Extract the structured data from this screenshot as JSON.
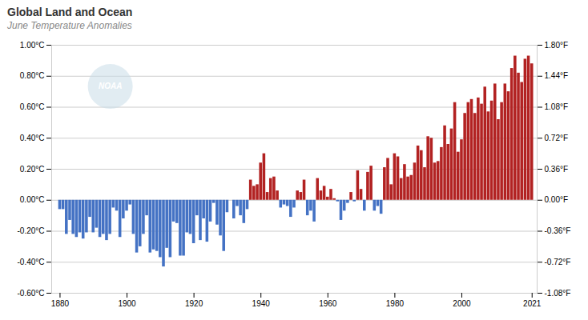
{
  "chart_data": {
    "type": "bar",
    "title": "Global Land and Ocean",
    "subtitle": "June Temperature Anomalies",
    "x": [
      1880,
      1881,
      1882,
      1883,
      1884,
      1885,
      1886,
      1887,
      1888,
      1889,
      1890,
      1891,
      1892,
      1893,
      1894,
      1895,
      1896,
      1897,
      1898,
      1899,
      1900,
      1901,
      1902,
      1903,
      1904,
      1905,
      1906,
      1907,
      1908,
      1909,
      1910,
      1911,
      1912,
      1913,
      1914,
      1915,
      1916,
      1917,
      1918,
      1919,
      1920,
      1921,
      1922,
      1923,
      1924,
      1925,
      1926,
      1927,
      1928,
      1929,
      1930,
      1931,
      1932,
      1933,
      1934,
      1935,
      1936,
      1937,
      1938,
      1939,
      1940,
      1941,
      1942,
      1943,
      1944,
      1945,
      1946,
      1947,
      1948,
      1949,
      1950,
      1951,
      1952,
      1953,
      1954,
      1955,
      1956,
      1957,
      1958,
      1959,
      1960,
      1961,
      1962,
      1963,
      1964,
      1965,
      1966,
      1967,
      1968,
      1969,
      1970,
      1971,
      1972,
      1973,
      1974,
      1975,
      1976,
      1977,
      1978,
      1979,
      1980,
      1981,
      1982,
      1983,
      1984,
      1985,
      1986,
      1987,
      1988,
      1989,
      1990,
      1991,
      1992,
      1993,
      1994,
      1995,
      1996,
      1997,
      1998,
      1999,
      2000,
      2001,
      2002,
      2003,
      2004,
      2005,
      2006,
      2007,
      2008,
      2009,
      2010,
      2011,
      2012,
      2013,
      2014,
      2015,
      2016,
      2017,
      2018,
      2019,
      2020,
      2021
    ],
    "values": [
      -0.06,
      -0.06,
      -0.22,
      -0.13,
      -0.22,
      -0.24,
      -0.21,
      -0.25,
      -0.21,
      -0.11,
      -0.21,
      -0.18,
      -0.24,
      -0.22,
      -0.26,
      -0.22,
      -0.05,
      -0.07,
      -0.24,
      -0.12,
      -0.07,
      -0.03,
      -0.22,
      -0.34,
      -0.3,
      -0.22,
      -0.1,
      -0.34,
      -0.32,
      -0.33,
      -0.37,
      -0.43,
      -0.31,
      -0.37,
      -0.14,
      -0.15,
      -0.36,
      -0.36,
      -0.21,
      -0.22,
      -0.28,
      -0.1,
      -0.26,
      -0.12,
      -0.27,
      -0.14,
      -0.02,
      -0.16,
      -0.23,
      -0.33,
      -0.08,
      -0.0,
      -0.12,
      -0.04,
      -0.1,
      -0.15,
      -0.06,
      0.13,
      0.09,
      0.1,
      0.24,
      0.3,
      0.05,
      0.14,
      0.15,
      0.06,
      -0.05,
      -0.03,
      -0.04,
      -0.11,
      -0.05,
      0.06,
      0.05,
      0.13,
      -0.1,
      -0.07,
      -0.14,
      0.14,
      0.06,
      0.09,
      0.02,
      0.07,
      0.01,
      -0.01,
      -0.13,
      -0.07,
      -0.02,
      0.05,
      -0.01,
      0.19,
      0.07,
      -0.07,
      0.18,
      0.22,
      -0.07,
      -0.04,
      -0.09,
      0.21,
      0.27,
      0.1,
      0.3,
      0.28,
      0.14,
      0.23,
      0.15,
      0.16,
      0.24,
      0.35,
      0.32,
      0.21,
      0.41,
      0.4,
      0.24,
      0.25,
      0.34,
      0.48,
      0.36,
      0.46,
      0.63,
      0.31,
      0.39,
      0.56,
      0.63,
      0.65,
      0.56,
      0.66,
      0.62,
      0.73,
      0.57,
      0.64,
      0.75,
      0.52,
      0.63,
      0.75,
      0.7,
      0.85,
      0.93,
      0.82,
      0.76,
      0.91,
      0.93,
      0.88
    ],
    "colors": [
      "#4472c4",
      "#4472c4",
      "#4472c4",
      "#4472c4",
      "#4472c4",
      "#4472c4",
      "#4472c4",
      "#4472c4",
      "#4472c4",
      "#4472c4",
      "#4472c4",
      "#4472c4",
      "#4472c4",
      "#4472c4",
      "#4472c4",
      "#4472c4",
      "#4472c4",
      "#4472c4",
      "#4472c4",
      "#4472c4",
      "#4472c4",
      "#4472c4",
      "#4472c4",
      "#4472c4",
      "#4472c4",
      "#4472c4",
      "#4472c4",
      "#4472c4",
      "#4472c4",
      "#4472c4",
      "#4472c4",
      "#4472c4",
      "#4472c4",
      "#4472c4",
      "#4472c4",
      "#4472c4",
      "#4472c4",
      "#4472c4",
      "#4472c4",
      "#4472c4",
      "#4472c4",
      "#4472c4",
      "#4472c4",
      "#4472c4",
      "#4472c4",
      "#4472c4",
      "#4472c4",
      "#4472c4",
      "#4472c4",
      "#4472c4",
      "#4472c4",
      "#b22222",
      "#4472c4",
      "#4472c4",
      "#4472c4",
      "#4472c4",
      "#4472c4",
      "#b22222",
      "#b22222",
      "#b22222",
      "#b22222",
      "#b22222",
      "#b22222",
      "#b22222",
      "#b22222",
      "#b22222",
      "#4472c4",
      "#4472c4",
      "#4472c4",
      "#4472c4",
      "#4472c4",
      "#b22222",
      "#b22222",
      "#b22222",
      "#4472c4",
      "#4472c4",
      "#4472c4",
      "#b22222",
      "#b22222",
      "#b22222",
      "#b22222",
      "#b22222",
      "#b22222",
      "#4472c4",
      "#4472c4",
      "#4472c4",
      "#4472c4",
      "#b22222",
      "#4472c4",
      "#b22222",
      "#b22222",
      "#4472c4",
      "#b22222",
      "#b22222",
      "#4472c4",
      "#4472c4",
      "#4472c4",
      "#b22222",
      "#b22222",
      "#b22222",
      "#b22222",
      "#b22222",
      "#b22222",
      "#b22222",
      "#b22222",
      "#b22222",
      "#b22222",
      "#b22222",
      "#b22222",
      "#b22222",
      "#b22222",
      "#b22222",
      "#b22222",
      "#b22222",
      "#b22222",
      "#b22222",
      "#b22222",
      "#b22222",
      "#b22222",
      "#b22222",
      "#b22222",
      "#b22222",
      "#b22222",
      "#b22222",
      "#b22222",
      "#b22222",
      "#b22222",
      "#b22222",
      "#b22222",
      "#b22222",
      "#b22222",
      "#b22222",
      "#b22222",
      "#b22222",
      "#b22222",
      "#b22222",
      "#b22222",
      "#b22222",
      "#b22222",
      "#b22222",
      "#b22222",
      "#b22222"
    ],
    "xlim": [
      1877.5,
      2022.5
    ],
    "xticks": [
      1880,
      1900,
      1920,
      1940,
      1960,
      1980,
      2000,
      2021
    ],
    "ylim": [
      -0.6,
      1.0
    ],
    "yticks": [
      {
        "value": -0.6,
        "label": "-0.60°C"
      },
      {
        "value": -0.4,
        "label": "-0.40°C"
      },
      {
        "value": -0.2,
        "label": "-0.20°C"
      },
      {
        "value": 0.0,
        "label": "0.00°C"
      },
      {
        "value": 0.2,
        "label": "0.20°C"
      },
      {
        "value": 0.4,
        "label": "0.40°C"
      },
      {
        "value": 0.6,
        "label": "0.60°C"
      },
      {
        "value": 0.8,
        "label": "0.80°C"
      },
      {
        "value": 1.0,
        "label": "1.00°C"
      }
    ],
    "y2lim": [
      -0.6,
      1.0
    ],
    "y2ticks": [
      {
        "value": -0.6,
        "label": "-1.08°F"
      },
      {
        "value": -0.4,
        "label": "-0.72°F"
      },
      {
        "value": -0.2,
        "label": "-0.36°F"
      },
      {
        "value": 0.0,
        "label": "0.00°F"
      },
      {
        "value": 0.2,
        "label": "0.36°F"
      },
      {
        "value": 0.4,
        "label": "0.72°F"
      },
      {
        "value": 0.6,
        "label": "1.08°F"
      },
      {
        "value": 0.8,
        "label": "1.44°F"
      },
      {
        "value": 1.0,
        "label": "1.80°F"
      }
    ],
    "grid": true,
    "annotations": [
      {
        "text": "NOAA",
        "x": 1895,
        "y": 0.734
      }
    ]
  }
}
